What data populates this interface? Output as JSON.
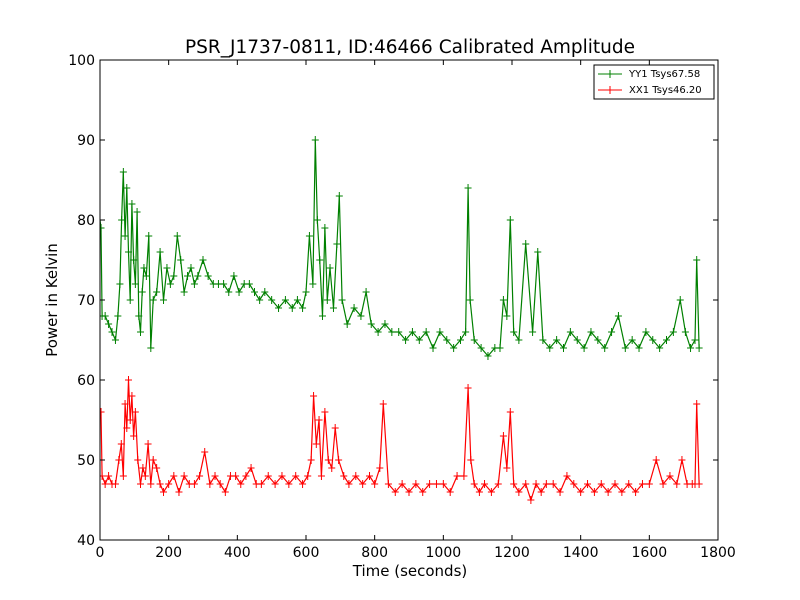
{
  "colors": {
    "yy1": "#008000",
    "xx1": "#ff0000",
    "axis": "#000000",
    "background": "#ffffff"
  },
  "chart_data": {
    "type": "line",
    "title": "PSR_J1737-0811, ID:46466 Calibrated Amplitude",
    "xlabel": "Time (seconds)",
    "ylabel": "Power in Kelvin",
    "xlim": [
      0,
      1800
    ],
    "ylim": [
      40,
      100
    ],
    "x_ticks": [
      "0",
      "200",
      "400",
      "600",
      "800",
      "1000",
      "1200",
      "1400",
      "1600",
      "1800"
    ],
    "y_ticks": [
      "40",
      "50",
      "60",
      "70",
      "80",
      "90",
      "100"
    ],
    "grid": false,
    "legend_position": "top-right",
    "marker": "plus with error bars",
    "series": [
      {
        "name": "YY1 Tsys67.58",
        "color": "#008000",
        "points": [
          [
            0,
            80
          ],
          [
            3,
            79
          ],
          [
            6,
            68
          ],
          [
            15,
            68
          ],
          [
            25,
            67
          ],
          [
            35,
            66
          ],
          [
            45,
            65
          ],
          [
            52,
            68
          ],
          [
            58,
            72
          ],
          [
            63,
            80
          ],
          [
            68,
            86
          ],
          [
            73,
            78
          ],
          [
            78,
            84
          ],
          [
            83,
            76
          ],
          [
            88,
            70
          ],
          [
            93,
            82
          ],
          [
            98,
            75
          ],
          [
            103,
            72
          ],
          [
            108,
            81
          ],
          [
            113,
            68
          ],
          [
            118,
            66
          ],
          [
            123,
            71
          ],
          [
            128,
            74
          ],
          [
            135,
            73
          ],
          [
            142,
            78
          ],
          [
            148,
            64
          ],
          [
            155,
            70
          ],
          [
            165,
            71
          ],
          [
            175,
            76
          ],
          [
            185,
            70
          ],
          [
            195,
            74
          ],
          [
            205,
            72
          ],
          [
            215,
            73
          ],
          [
            225,
            78
          ],
          [
            235,
            75
          ],
          [
            245,
            71
          ],
          [
            255,
            73
          ],
          [
            265,
            74
          ],
          [
            275,
            72
          ],
          [
            285,
            73
          ],
          [
            300,
            75
          ],
          [
            315,
            73
          ],
          [
            330,
            72
          ],
          [
            345,
            72
          ],
          [
            360,
            72
          ],
          [
            375,
            71
          ],
          [
            390,
            73
          ],
          [
            405,
            71
          ],
          [
            420,
            72
          ],
          [
            435,
            72
          ],
          [
            450,
            71
          ],
          [
            465,
            70
          ],
          [
            480,
            71
          ],
          [
            500,
            70
          ],
          [
            520,
            69
          ],
          [
            540,
            70
          ],
          [
            560,
            69
          ],
          [
            575,
            70
          ],
          [
            590,
            69
          ],
          [
            600,
            71
          ],
          [
            610,
            78
          ],
          [
            620,
            72
          ],
          [
            627,
            90
          ],
          [
            633,
            80
          ],
          [
            640,
            75
          ],
          [
            648,
            68
          ],
          [
            655,
            79
          ],
          [
            662,
            70
          ],
          [
            670,
            74
          ],
          [
            680,
            69
          ],
          [
            690,
            77
          ],
          [
            697,
            83
          ],
          [
            705,
            70
          ],
          [
            720,
            67
          ],
          [
            740,
            69
          ],
          [
            760,
            68
          ],
          [
            775,
            71
          ],
          [
            790,
            67
          ],
          [
            810,
            66
          ],
          [
            830,
            67
          ],
          [
            850,
            66
          ],
          [
            870,
            66
          ],
          [
            890,
            65
          ],
          [
            910,
            66
          ],
          [
            930,
            65
          ],
          [
            950,
            66
          ],
          [
            970,
            64
          ],
          [
            990,
            66
          ],
          [
            1010,
            65
          ],
          [
            1030,
            64
          ],
          [
            1050,
            65
          ],
          [
            1065,
            66
          ],
          [
            1072,
            84
          ],
          [
            1078,
            70
          ],
          [
            1090,
            65
          ],
          [
            1110,
            64
          ],
          [
            1130,
            63
          ],
          [
            1150,
            64
          ],
          [
            1165,
            64
          ],
          [
            1175,
            70
          ],
          [
            1185,
            68
          ],
          [
            1195,
            80
          ],
          [
            1205,
            66
          ],
          [
            1220,
            65
          ],
          [
            1240,
            77
          ],
          [
            1260,
            66
          ],
          [
            1275,
            76
          ],
          [
            1290,
            65
          ],
          [
            1310,
            64
          ],
          [
            1330,
            65
          ],
          [
            1350,
            64
          ],
          [
            1370,
            66
          ],
          [
            1390,
            65
          ],
          [
            1410,
            64
          ],
          [
            1430,
            66
          ],
          [
            1450,
            65
          ],
          [
            1470,
            64
          ],
          [
            1490,
            66
          ],
          [
            1510,
            68
          ],
          [
            1530,
            64
          ],
          [
            1550,
            65
          ],
          [
            1570,
            64
          ],
          [
            1590,
            66
          ],
          [
            1610,
            65
          ],
          [
            1630,
            64
          ],
          [
            1650,
            65
          ],
          [
            1670,
            66
          ],
          [
            1690,
            70
          ],
          [
            1705,
            66
          ],
          [
            1720,
            64
          ],
          [
            1733,
            65
          ],
          [
            1738,
            75
          ],
          [
            1745,
            64
          ]
        ]
      },
      {
        "name": "XX1 Tsys46.20",
        "color": "#ff0000",
        "points": [
          [
            0,
            56
          ],
          [
            3,
            56
          ],
          [
            6,
            48
          ],
          [
            15,
            47
          ],
          [
            25,
            48
          ],
          [
            35,
            47
          ],
          [
            45,
            47
          ],
          [
            55,
            50
          ],
          [
            62,
            52
          ],
          [
            68,
            48
          ],
          [
            73,
            57
          ],
          [
            78,
            54
          ],
          [
            83,
            60
          ],
          [
            88,
            55
          ],
          [
            93,
            58
          ],
          [
            98,
            53
          ],
          [
            103,
            56
          ],
          [
            110,
            50
          ],
          [
            118,
            47
          ],
          [
            125,
            49
          ],
          [
            132,
            48
          ],
          [
            140,
            52
          ],
          [
            148,
            47
          ],
          [
            155,
            50
          ],
          [
            165,
            49
          ],
          [
            175,
            47
          ],
          [
            185,
            46
          ],
          [
            200,
            47
          ],
          [
            215,
            48
          ],
          [
            230,
            46
          ],
          [
            245,
            48
          ],
          [
            260,
            47
          ],
          [
            275,
            47
          ],
          [
            290,
            48
          ],
          [
            305,
            51
          ],
          [
            320,
            47
          ],
          [
            335,
            48
          ],
          [
            350,
            47
          ],
          [
            365,
            46
          ],
          [
            380,
            48
          ],
          [
            395,
            48
          ],
          [
            410,
            47
          ],
          [
            425,
            48
          ],
          [
            440,
            49
          ],
          [
            455,
            47
          ],
          [
            470,
            47
          ],
          [
            490,
            48
          ],
          [
            510,
            47
          ],
          [
            530,
            48
          ],
          [
            550,
            47
          ],
          [
            570,
            48
          ],
          [
            590,
            47
          ],
          [
            605,
            48
          ],
          [
            615,
            50
          ],
          [
            622,
            58
          ],
          [
            630,
            52
          ],
          [
            638,
            55
          ],
          [
            645,
            48
          ],
          [
            655,
            56
          ],
          [
            665,
            50
          ],
          [
            675,
            49
          ],
          [
            685,
            54
          ],
          [
            695,
            50
          ],
          [
            710,
            48
          ],
          [
            725,
            47
          ],
          [
            745,
            48
          ],
          [
            765,
            47
          ],
          [
            785,
            48
          ],
          [
            800,
            47
          ],
          [
            815,
            49
          ],
          [
            825,
            57
          ],
          [
            840,
            47
          ],
          [
            860,
            46
          ],
          [
            880,
            47
          ],
          [
            900,
            46
          ],
          [
            920,
            47
          ],
          [
            940,
            46
          ],
          [
            960,
            47
          ],
          [
            980,
            47
          ],
          [
            1000,
            47
          ],
          [
            1020,
            46
          ],
          [
            1040,
            48
          ],
          [
            1060,
            48
          ],
          [
            1072,
            59
          ],
          [
            1080,
            50
          ],
          [
            1090,
            47
          ],
          [
            1105,
            46
          ],
          [
            1120,
            47
          ],
          [
            1140,
            46
          ],
          [
            1160,
            47
          ],
          [
            1175,
            53
          ],
          [
            1185,
            49
          ],
          [
            1195,
            56
          ],
          [
            1205,
            47
          ],
          [
            1220,
            46
          ],
          [
            1240,
            47
          ],
          [
            1255,
            45
          ],
          [
            1270,
            47
          ],
          [
            1285,
            46
          ],
          [
            1300,
            47
          ],
          [
            1320,
            47
          ],
          [
            1340,
            46
          ],
          [
            1360,
            48
          ],
          [
            1380,
            47
          ],
          [
            1400,
            46
          ],
          [
            1420,
            47
          ],
          [
            1440,
            46
          ],
          [
            1460,
            47
          ],
          [
            1480,
            46
          ],
          [
            1500,
            47
          ],
          [
            1520,
            46
          ],
          [
            1540,
            47
          ],
          [
            1560,
            46
          ],
          [
            1580,
            47
          ],
          [
            1600,
            47
          ],
          [
            1620,
            50
          ],
          [
            1640,
            47
          ],
          [
            1660,
            48
          ],
          [
            1680,
            47
          ],
          [
            1695,
            50
          ],
          [
            1710,
            47
          ],
          [
            1725,
            47
          ],
          [
            1733,
            47
          ],
          [
            1738,
            57
          ],
          [
            1745,
            47
          ]
        ]
      }
    ]
  }
}
